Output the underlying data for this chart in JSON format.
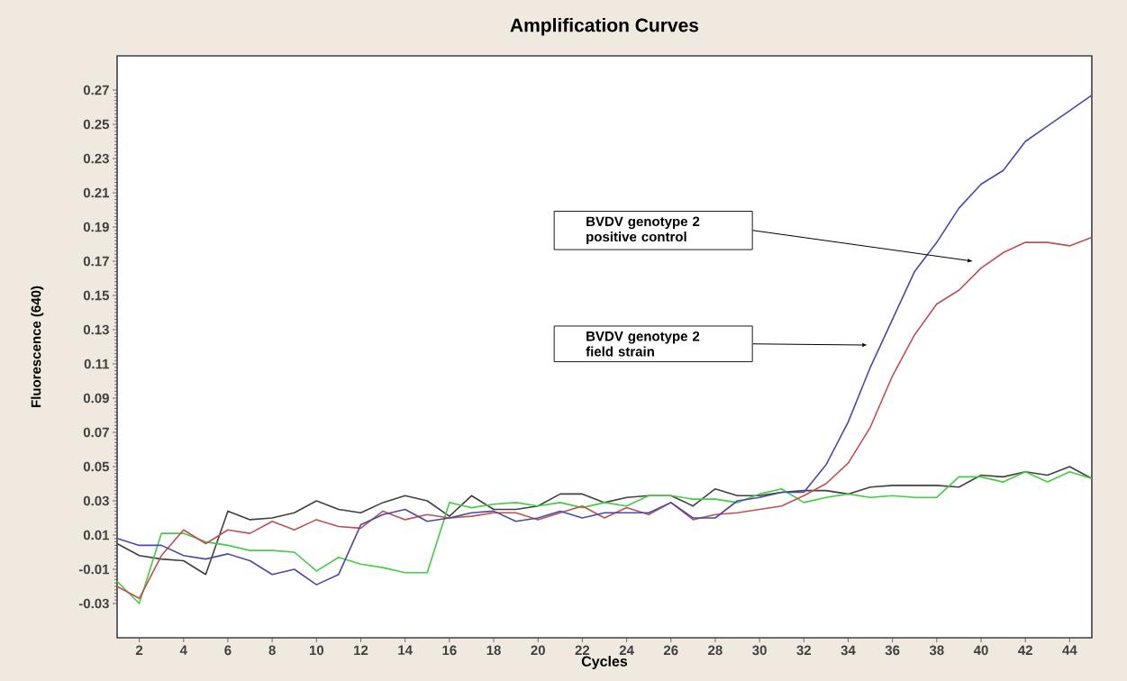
{
  "chart_data": {
    "type": "line",
    "title": "Amplification Curves",
    "xlabel": "Cycles",
    "ylabel": "Fluorescence (640)",
    "x": [
      1,
      2,
      3,
      4,
      5,
      6,
      7,
      8,
      9,
      10,
      11,
      12,
      13,
      14,
      15,
      16,
      17,
      18,
      19,
      20,
      21,
      22,
      23,
      24,
      25,
      26,
      27,
      28,
      29,
      30,
      31,
      32,
      33,
      34,
      35,
      36,
      37,
      38,
      39,
      40,
      41,
      42,
      43,
      44,
      45
    ],
    "xlim": [
      1,
      45
    ],
    "xticks": [
      2,
      4,
      6,
      8,
      10,
      12,
      14,
      16,
      18,
      20,
      22,
      24,
      26,
      28,
      30,
      32,
      34,
      36,
      38,
      40,
      42,
      44
    ],
    "ylim": [
      -0.05,
      0.29
    ],
    "yticks": [
      -0.03,
      -0.01,
      0.01,
      0.03,
      0.05,
      0.07,
      0.09,
      0.11,
      0.13,
      0.15,
      0.17,
      0.19,
      0.21,
      0.23,
      0.25,
      0.27
    ],
    "grid": false,
    "marker": "none",
    "line_style": "solid",
    "series": [
      {
        "color": "#404040",
        "values": [
          0.005,
          -0.002,
          -0.004,
          -0.005,
          -0.013,
          0.024,
          0.019,
          0.02,
          0.023,
          0.03,
          0.025,
          0.023,
          0.029,
          0.033,
          0.03,
          0.021,
          0.033,
          0.025,
          0.025,
          0.027,
          0.034,
          0.034,
          0.029,
          0.032,
          0.033,
          0.033,
          0.027,
          0.037,
          0.033,
          0.033,
          0.035,
          0.036,
          0.036,
          0.034,
          0.038,
          0.039,
          0.039,
          0.039,
          0.038,
          0.045,
          0.044,
          0.047,
          0.045,
          0.05,
          0.043
        ]
      },
      {
        "color": "#44cc44",
        "values": [
          -0.017,
          -0.03,
          0.011,
          0.011,
          0.006,
          0.004,
          0.001,
          0.001,
          0.0,
          -0.011,
          -0.003,
          -0.007,
          -0.009,
          -0.012,
          -0.012,
          0.029,
          0.026,
          0.028,
          0.029,
          0.027,
          0.029,
          0.026,
          0.029,
          0.027,
          0.033,
          0.033,
          0.031,
          0.031,
          0.029,
          0.034,
          0.037,
          0.029,
          0.032,
          0.034,
          0.032,
          0.033,
          0.032,
          0.032,
          0.044,
          0.044,
          0.041,
          0.047,
          0.041,
          0.047,
          0.043
        ]
      },
      {
        "color": "#c05050",
        "values": [
          -0.02,
          -0.027,
          -0.002,
          0.013,
          0.005,
          0.013,
          0.011,
          0.018,
          0.013,
          0.019,
          0.015,
          0.014,
          0.024,
          0.019,
          0.022,
          0.02,
          0.021,
          0.023,
          0.023,
          0.019,
          0.023,
          0.027,
          0.02,
          0.026,
          0.022,
          0.029,
          0.019,
          0.022,
          0.023,
          0.025,
          0.027,
          0.033,
          0.04,
          0.052,
          0.073,
          0.103,
          0.127,
          0.145,
          0.153,
          0.166,
          0.175,
          0.181,
          0.181,
          0.179,
          0.184
        ]
      },
      {
        "color": "#4a4aa8",
        "values": [
          0.008,
          0.004,
          0.004,
          -0.002,
          -0.004,
          -0.001,
          -0.005,
          -0.013,
          -0.01,
          -0.019,
          -0.013,
          0.016,
          0.022,
          0.025,
          0.018,
          0.02,
          0.023,
          0.024,
          0.018,
          0.02,
          0.024,
          0.02,
          0.023,
          0.023,
          0.023,
          0.029,
          0.02,
          0.02,
          0.03,
          0.032,
          0.035,
          0.035,
          0.051,
          0.076,
          0.108,
          0.136,
          0.164,
          0.181,
          0.201,
          0.215,
          0.223,
          0.24,
          0.249,
          0.258,
          0.267
        ]
      }
    ],
    "annotations": [
      "BVDV genotype 2 positive control",
      "BVDV genotype 2 field strain"
    ]
  }
}
